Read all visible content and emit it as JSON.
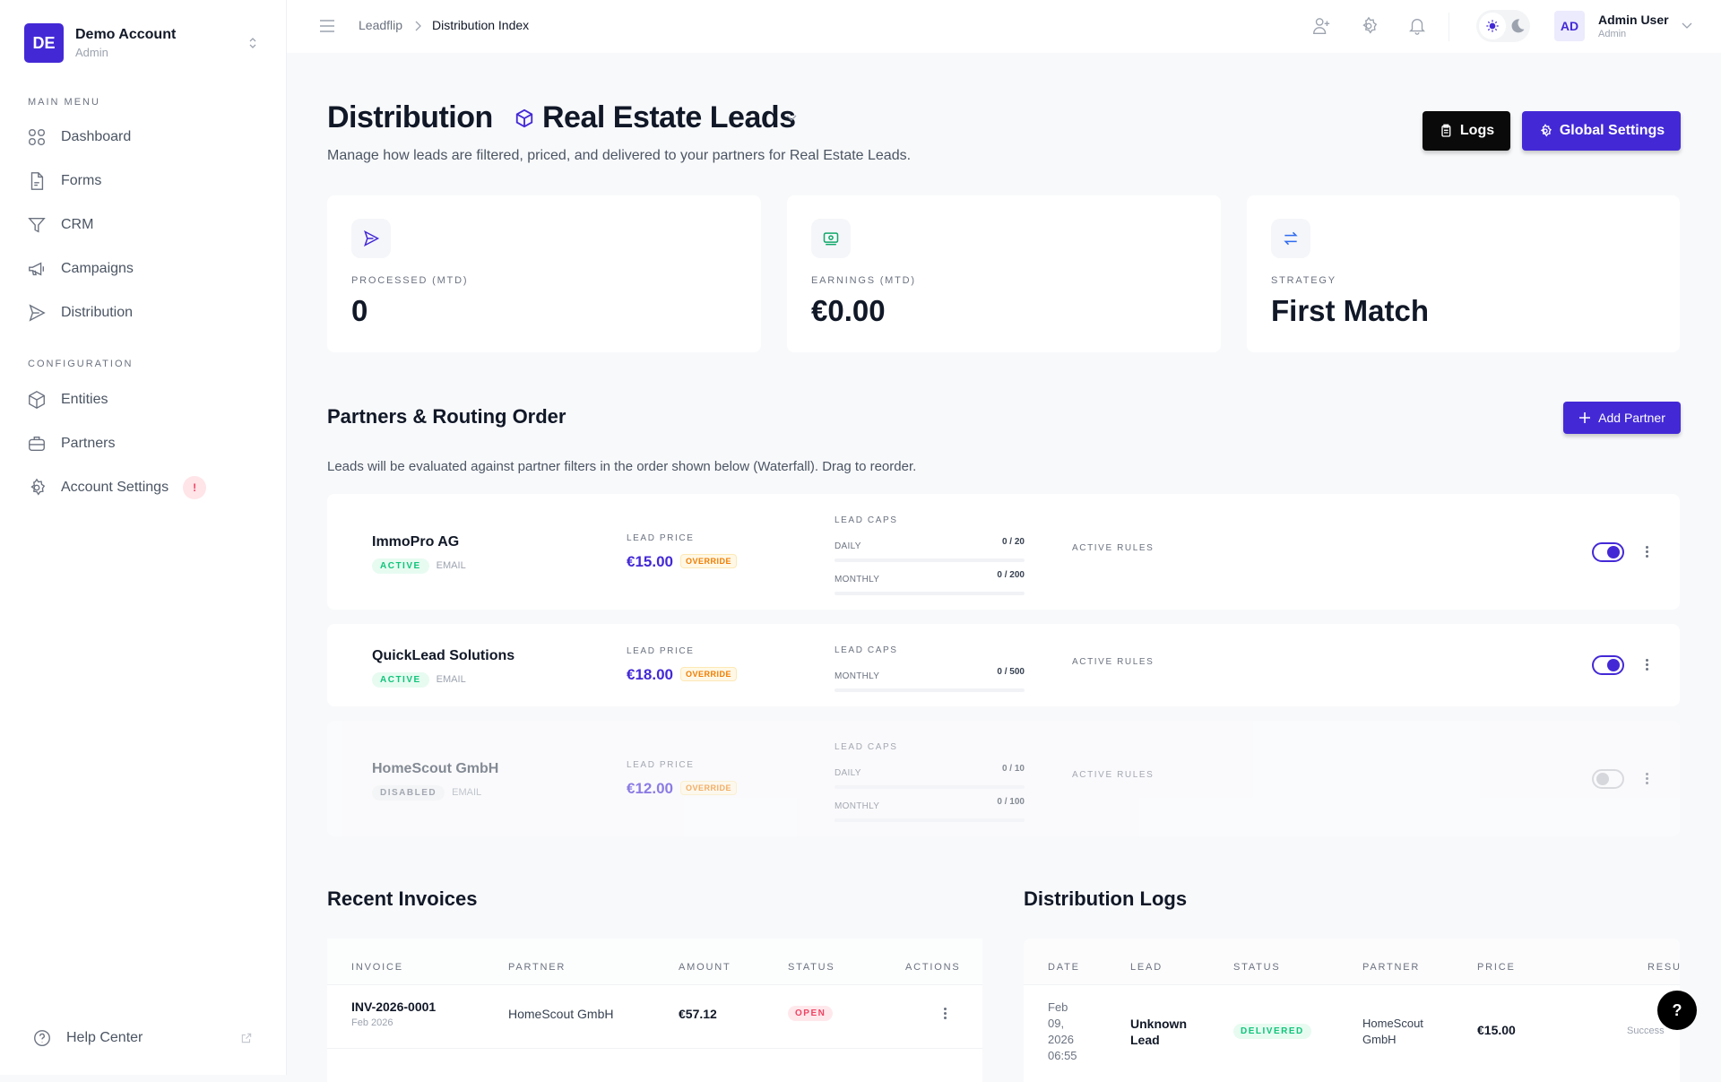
{
  "account": {
    "initials": "DE",
    "name": "Demo Account",
    "role": "Admin"
  },
  "sidebar": {
    "main_menu_label": "MAIN MENU",
    "main_items": [
      {
        "label": "Dashboard",
        "icon": "grid-icon"
      },
      {
        "label": "Forms",
        "icon": "file-icon"
      },
      {
        "label": "CRM",
        "icon": "filter-icon"
      },
      {
        "label": "Campaigns",
        "icon": "megaphone-icon"
      },
      {
        "label": "Distribution",
        "icon": "send-icon"
      }
    ],
    "config_label": "CONFIGURATION",
    "config_items": [
      {
        "label": "Entities",
        "icon": "cube-icon"
      },
      {
        "label": "Partners",
        "icon": "briefcase-icon"
      },
      {
        "label": "Account Settings",
        "icon": "gear-icon",
        "badge": "!"
      }
    ],
    "help_label": "Help Center"
  },
  "header": {
    "breadcrumb": [
      "Leadflip",
      "Distribution Index"
    ],
    "user": {
      "initials": "AD",
      "name": "Admin User",
      "role": "Admin"
    }
  },
  "page": {
    "title": "Distribution",
    "entity": "Real Estate Leads",
    "subtitle": "Manage how leads are filtered, priced, and delivered to your partners for Real Estate Leads.",
    "logs_label": "Logs",
    "settings_label": "Global Settings"
  },
  "stats": [
    {
      "label": "PROCESSED (MTD)",
      "value": "0",
      "icon": "send-icon",
      "color": "#4329d6"
    },
    {
      "label": "EARNINGS (MTD)",
      "value": "€0.00",
      "icon": "banknote-icon",
      "color": "#10a86b"
    },
    {
      "label": "STRATEGY",
      "value": "First Match",
      "icon": "arrows-swap-icon",
      "color": "#2f6bf0"
    }
  ],
  "partners": {
    "title": "Partners & Routing Order",
    "add_label": "Add Partner",
    "description": "Leads will be evaluated against partner filters in the order shown below (Waterfall). Drag to reorder.",
    "price_label": "LEAD PRICE",
    "caps_label": "LEAD CAPS",
    "rules_label": "ACTIVE RULES",
    "override_label": "OVERRIDE",
    "items": [
      {
        "name": "ImmoPro AG",
        "status": "ACTIVE",
        "channel": "EMAIL",
        "price": "€15.00",
        "caps": [
          {
            "label": "DAILY",
            "value": "0 / 20"
          },
          {
            "label": "MONTHLY",
            "value": "0 / 200"
          }
        ],
        "enabled": true
      },
      {
        "name": "QuickLead Solutions",
        "status": "ACTIVE",
        "channel": "EMAIL",
        "price": "€18.00",
        "caps": [
          {
            "label": "MONTHLY",
            "value": "0 / 500"
          }
        ],
        "enabled": true
      },
      {
        "name": "HomeScout GmbH",
        "status": "DISABLED",
        "channel": "EMAIL",
        "price": "€12.00",
        "caps": [
          {
            "label": "DAILY",
            "value": "0 / 10"
          },
          {
            "label": "MONTHLY",
            "value": "0 / 100"
          }
        ],
        "enabled": false
      }
    ]
  },
  "invoices": {
    "title": "Recent Invoices",
    "columns": [
      "INVOICE",
      "PARTNER",
      "AMOUNT",
      "STATUS",
      "ACTIONS"
    ],
    "rows": [
      {
        "id": "INV-2026-0001",
        "period": "Feb 2026",
        "partner": "HomeScout GmbH",
        "amount": "€57.12",
        "status": "OPEN"
      }
    ]
  },
  "logs": {
    "title": "Distribution Logs",
    "columns": [
      "DATE",
      "LEAD",
      "STATUS",
      "PARTNER",
      "PRICE",
      "RESU"
    ],
    "rows": [
      {
        "date": [
          "Feb",
          "09,",
          "2026",
          "06:55"
        ],
        "lead": [
          "Unknown",
          "Lead"
        ],
        "status": "DELIVERED",
        "partner": [
          "HomeScout",
          "GmbH"
        ],
        "price": "€15.00",
        "result": "Success"
      }
    ]
  },
  "help_button": "?"
}
